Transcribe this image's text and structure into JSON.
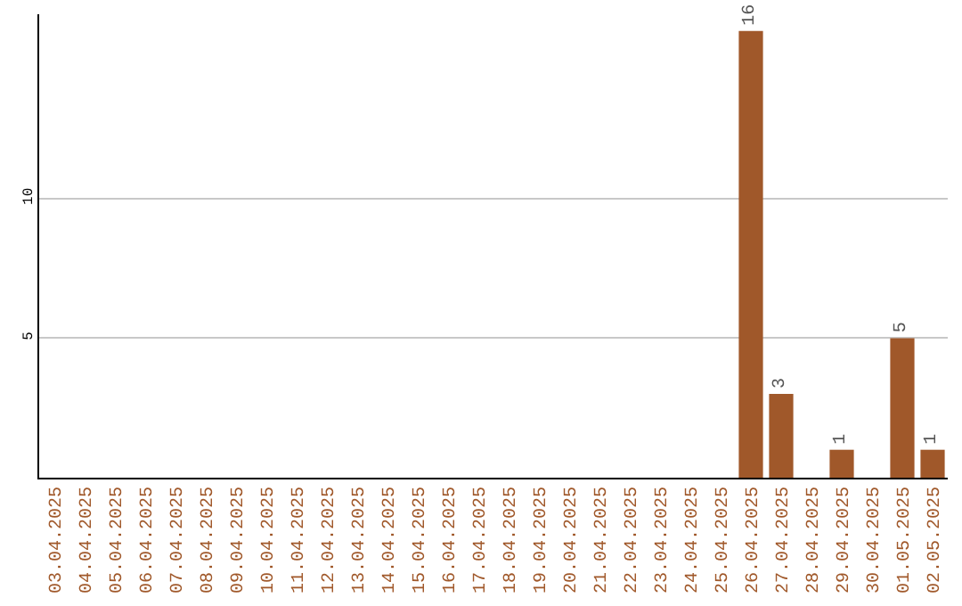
{
  "chart_data": {
    "type": "bar",
    "categories": [
      "03.04.2025",
      "04.04.2025",
      "05.04.2025",
      "06.04.2025",
      "07.04.2025",
      "08.04.2025",
      "09.04.2025",
      "10.04.2025",
      "11.04.2025",
      "12.04.2025",
      "13.04.2025",
      "14.04.2025",
      "15.04.2025",
      "16.04.2025",
      "17.04.2025",
      "18.04.2025",
      "19.04.2025",
      "20.04.2025",
      "21.04.2025",
      "22.04.2025",
      "23.04.2025",
      "24.04.2025",
      "25.04.2025",
      "26.04.2025",
      "27.04.2025",
      "28.04.2025",
      "29.04.2025",
      "30.04.2025",
      "01.05.2025",
      "02.05.2025"
    ],
    "values": [
      0,
      0,
      0,
      0,
      0,
      0,
      0,
      0,
      0,
      0,
      0,
      0,
      0,
      0,
      0,
      0,
      0,
      0,
      0,
      0,
      0,
      0,
      0,
      16,
      3,
      0,
      1,
      0,
      5,
      1
    ],
    "value_labels": [
      null,
      null,
      null,
      null,
      null,
      null,
      null,
      null,
      null,
      null,
      null,
      null,
      null,
      null,
      null,
      null,
      null,
      null,
      null,
      null,
      null,
      null,
      null,
      "16",
      "3",
      null,
      "1",
      null,
      "5",
      "1"
    ],
    "color": "#a0582a",
    "ylim": [
      0,
      16.6
    ],
    "yticks": [
      5,
      10
    ],
    "grid": "y",
    "legend": false
  }
}
